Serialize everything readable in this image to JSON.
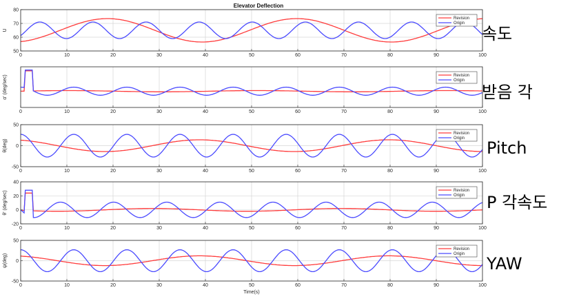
{
  "chart_data": [
    {
      "type": "line",
      "title": "Elevator Deflection",
      "ylabel": "U",
      "xlabel": "",
      "xlim": [
        0,
        100
      ],
      "ylim": [
        50,
        80
      ],
      "xticks": [
        0,
        10,
        20,
        30,
        40,
        50,
        60,
        70,
        80,
        90,
        100
      ],
      "yticks": [
        50,
        60,
        70,
        80
      ],
      "annotation": "속도",
      "legend_position": "top-right",
      "series": [
        {
          "name": "Revision",
          "color": "#ff3b3b",
          "curve": {
            "kind": "sine",
            "offset": 65,
            "amplitude": 8.5,
            "period": 41,
            "phase_deg": -75
          }
        },
        {
          "name": "Origin",
          "color": "#4a4aff",
          "curve": {
            "kind": "sine",
            "offset": 65,
            "amplitude": 6,
            "period": 11.5,
            "phase_deg": -40
          }
        }
      ]
    },
    {
      "type": "line",
      "title": "",
      "ylabel": "α' (deg/sec)",
      "xlabel": "",
      "xlim": [
        0,
        100
      ],
      "ylim": [
        -4,
        6
      ],
      "xticks": [
        0,
        10,
        20,
        30,
        40,
        50,
        60,
        70,
        80,
        90,
        100
      ],
      "yticks": [],
      "annotation": "받음 각",
      "legend_position": "top-right",
      "series": [
        {
          "name": "Revision",
          "color": "#ff3b3b",
          "curve": {
            "kind": "sine",
            "offset": 0,
            "amplitude": 0.15,
            "period": 41,
            "phase_deg": 0,
            "spike": {
              "start": 1,
              "end": 2.5,
              "height": 5
            }
          }
        },
        {
          "name": "Origin",
          "color": "#4a4aff",
          "curve": {
            "kind": "sine",
            "offset": 0,
            "amplitude": 1,
            "period": 11.5,
            "phase_deg": 90,
            "spike": {
              "start": 1,
              "end": 2.5,
              "height": 5.2
            }
          }
        }
      ]
    },
    {
      "type": "line",
      "title": "",
      "ylabel": "θ(deg)",
      "xlabel": "",
      "xlim": [
        0,
        100
      ],
      "ylim": [
        -50,
        50
      ],
      "xticks": [
        0,
        10,
        20,
        30,
        40,
        50,
        60,
        70,
        80,
        90,
        100
      ],
      "yticks": [
        -50,
        0,
        50
      ],
      "annotation": "Pitch",
      "legend_position": "top-right",
      "series": [
        {
          "name": "Revision",
          "color": "#ff3b3b",
          "curve": {
            "kind": "sine",
            "offset": 0,
            "amplitude": 14,
            "period": 41,
            "phase_deg": 110
          }
        },
        {
          "name": "Origin",
          "color": "#4a4aff",
          "curve": {
            "kind": "sine",
            "offset": 0,
            "amplitude": 27,
            "period": 11.5,
            "phase_deg": 90
          }
        }
      ]
    },
    {
      "type": "line",
      "title": "",
      "ylabel": "θ' (deg/sec)",
      "xlabel": "",
      "xlim": [
        0,
        100
      ],
      "ylim": [
        -20,
        40
      ],
      "xticks": [
        0,
        10,
        20,
        30,
        40,
        50,
        60,
        70,
        80,
        90,
        100
      ],
      "yticks": [
        -20,
        0,
        20,
        40
      ],
      "annotation": "P 각속도",
      "legend_position": "top-right",
      "series": [
        {
          "name": "Revision",
          "color": "#ff3b3b",
          "curve": {
            "kind": "sine",
            "offset": 0,
            "amplitude": 2,
            "period": 41,
            "phase_deg": 200,
            "spike": {
              "start": 1,
              "end": 2.5,
              "height": 24
            }
          }
        },
        {
          "name": "Origin",
          "color": "#4a4aff",
          "curve": {
            "kind": "sine",
            "offset": 0,
            "amplitude": 11,
            "period": 11.5,
            "phase_deg": 180,
            "spike": {
              "start": 1,
              "end": 2.5,
              "height": 28
            }
          }
        }
      ]
    },
    {
      "type": "line",
      "title": "",
      "ylabel": "ψ(deg)",
      "xlabel": "Time(s)",
      "xlim": [
        0,
        100
      ],
      "ylim": [
        -50,
        50
      ],
      "xticks": [
        0,
        10,
        20,
        30,
        40,
        50,
        60,
        70,
        80,
        90,
        100
      ],
      "yticks": [
        -50,
        0,
        50
      ],
      "annotation": "YAW",
      "legend_position": "top-right",
      "series": [
        {
          "name": "Revision",
          "color": "#ff3b3b",
          "curve": {
            "kind": "sine",
            "offset": 0,
            "amplitude": 12,
            "period": 41,
            "phase_deg": 110
          }
        },
        {
          "name": "Origin",
          "color": "#4a4aff",
          "curve": {
            "kind": "sine",
            "offset": 0,
            "amplitude": 27,
            "period": 11.5,
            "phase_deg": 90
          }
        }
      ]
    }
  ],
  "colors": {
    "background": "#ffffff",
    "axes_bg": "#ffffff",
    "grid": "#d6d6d6",
    "axis": "#262626"
  }
}
